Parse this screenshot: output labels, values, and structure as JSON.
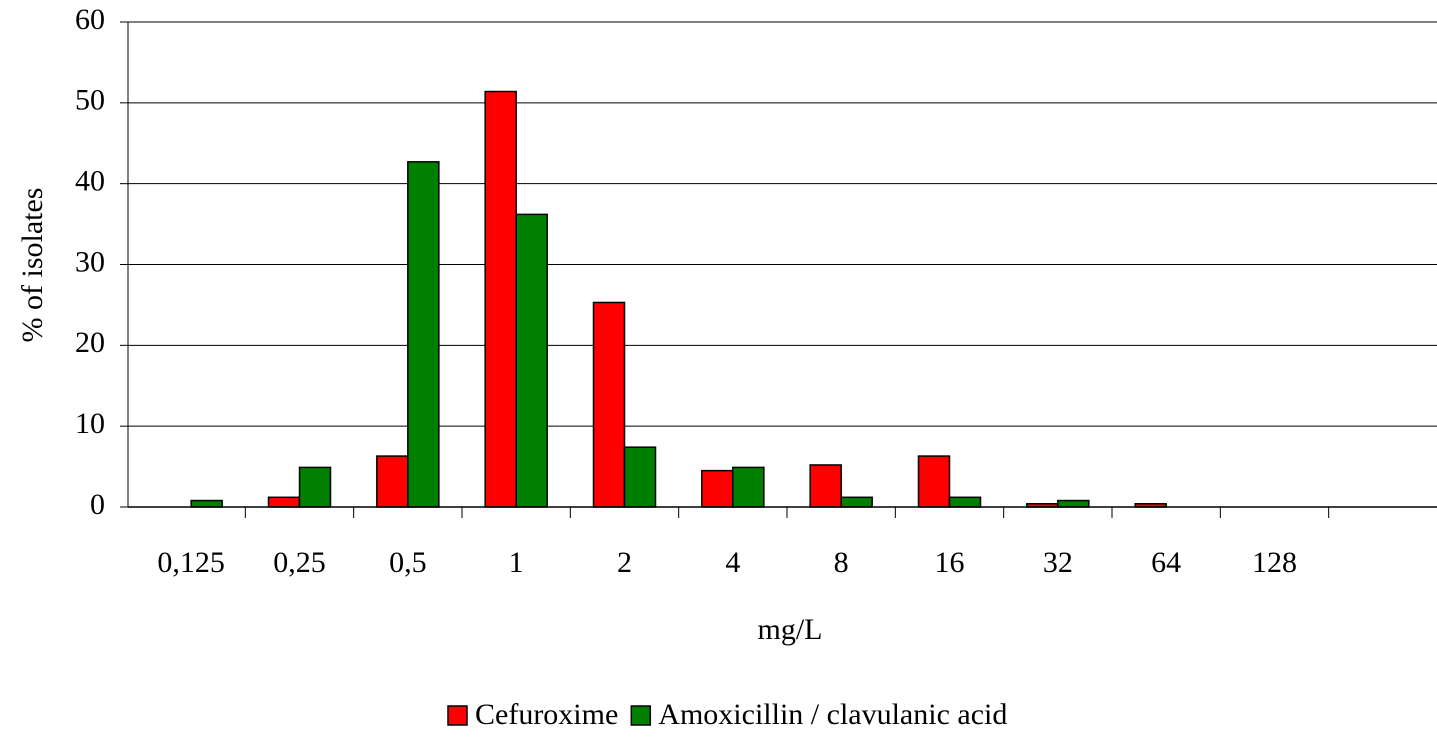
{
  "chart_data": {
    "type": "bar",
    "x_label": "mg/L",
    "y_label": "% of isolates",
    "categories": [
      "0,125",
      "0,25",
      "0,5",
      "1",
      "2",
      "4",
      "8",
      "16",
      "32",
      "64",
      "128",
      null
    ],
    "series": [
      {
        "name": "Cefuroxime",
        "color": "#ff0000",
        "values": [
          0,
          1.2,
          6.3,
          51.4,
          25.3,
          4.5,
          5.2,
          6.3,
          0.4,
          0.4,
          0,
          null
        ]
      },
      {
        "name": "Amoxicillin / clavulanic acid",
        "color": "#008000",
        "values": [
          0.8,
          4.9,
          42.7,
          36.2,
          7.4,
          4.9,
          1.2,
          1.2,
          0.8,
          0,
          0,
          null
        ]
      }
    ],
    "ylim": [
      0,
      60
    ],
    "yticks": [
      0,
      10,
      20,
      30,
      40,
      50,
      60
    ],
    "grid": true,
    "legend": "bottom"
  }
}
